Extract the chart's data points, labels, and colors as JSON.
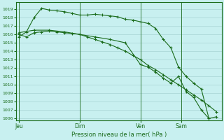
{
  "bg_color": "#c8f0f0",
  "grid_color": "#a8d4d4",
  "line_color": "#1a6b1a",
  "xlabel": "Pression niveau de la mer( hPa )",
  "ylim_min": 1005.8,
  "ylim_max": 1019.8,
  "yticks": [
    1006,
    1007,
    1008,
    1009,
    1010,
    1011,
    1012,
    1013,
    1014,
    1015,
    1016,
    1017,
    1018,
    1019
  ],
  "xtick_labels": [
    "Jeu",
    "Dim",
    "Ven",
    "Sam"
  ],
  "xtick_positions": [
    0,
    24,
    48,
    64
  ],
  "vline_positions": [
    0,
    24,
    48,
    64
  ],
  "xlim_min": -1,
  "xlim_max": 80,
  "series1_x": [
    0,
    3,
    6,
    9,
    12,
    15,
    18,
    21,
    24,
    27,
    30,
    33,
    36,
    39,
    42,
    45,
    48,
    51,
    54,
    57,
    60,
    63,
    66,
    69,
    72,
    75,
    78
  ],
  "series1_y": [
    1016.0,
    1015.7,
    1016.2,
    1016.3,
    1016.4,
    1016.3,
    1016.2,
    1016.1,
    1016.0,
    1015.7,
    1015.4,
    1015.1,
    1014.8,
    1014.4,
    1014.0,
    1013.5,
    1013.0,
    1012.3,
    1011.8,
    1011.2,
    1010.6,
    1010.0,
    1009.4,
    1008.8,
    1008.2,
    1007.5,
    1006.8
  ],
  "series2_x": [
    0,
    3,
    6,
    9,
    12,
    15,
    18,
    21,
    24,
    27,
    30,
    33,
    36,
    39,
    42,
    45,
    48,
    51,
    54,
    57,
    60,
    63,
    66,
    69,
    72,
    75
  ],
  "series2_y": [
    1015.7,
    1016.3,
    1018.0,
    1019.1,
    1018.9,
    1018.8,
    1018.7,
    1018.5,
    1018.3,
    1018.3,
    1018.4,
    1018.3,
    1018.2,
    1018.1,
    1017.8,
    1017.7,
    1017.5,
    1017.3,
    1016.7,
    1015.4,
    1014.4,
    1012.1,
    1011.0,
    1010.2,
    1009.5,
    1006.0
  ],
  "series3_x": [
    0,
    6,
    12,
    18,
    24,
    30,
    36,
    42,
    48,
    51,
    54,
    57,
    60,
    63,
    66,
    69,
    72,
    75,
    78
  ],
  "series3_y": [
    1016.2,
    1016.5,
    1016.5,
    1016.3,
    1016.0,
    1015.7,
    1015.4,
    1015.0,
    1012.4,
    1012.1,
    1011.5,
    1010.8,
    1010.2,
    1011.0,
    1009.2,
    1008.5,
    1007.0,
    1006.0,
    1006.2
  ]
}
